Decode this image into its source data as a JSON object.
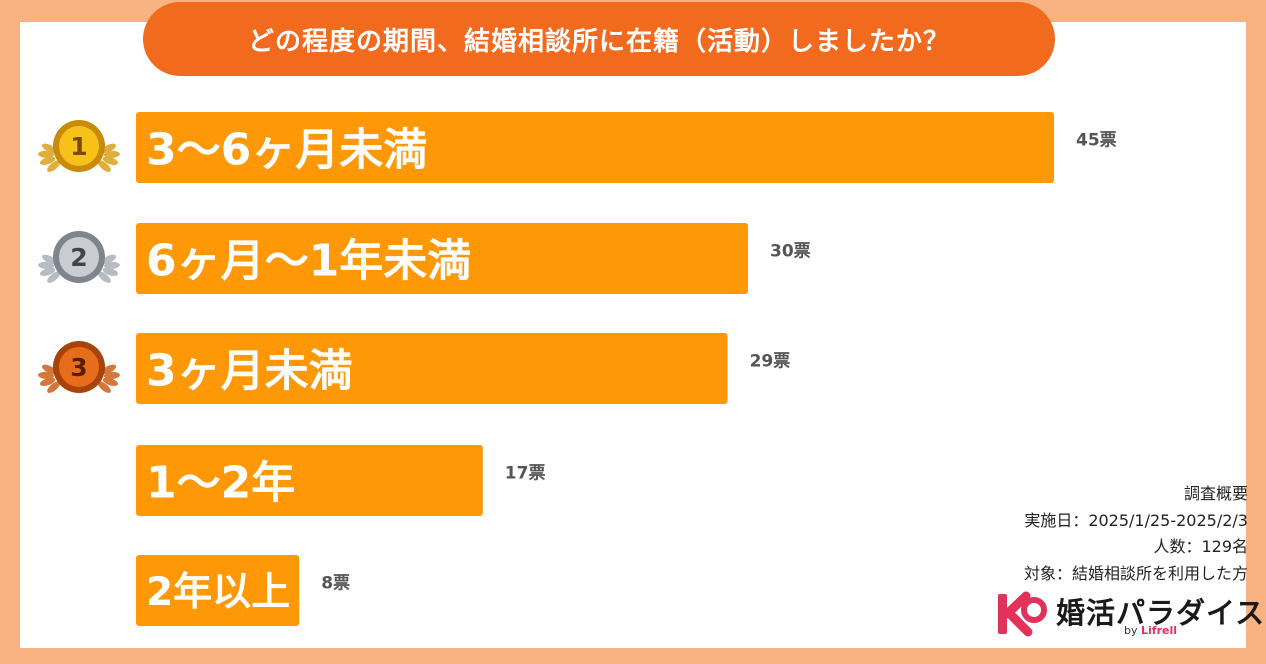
{
  "title": "どの程度の期間、結婚相談所に在籍（活動）しましたか？",
  "chart_data": {
    "type": "bar",
    "orientation": "horizontal",
    "categories": [
      "3〜6ヶ月未満",
      "6ヶ月〜1年未満",
      "3ヶ月未満",
      "1〜2年",
      "2年以上"
    ],
    "values": [
      45,
      30,
      29,
      17,
      8
    ],
    "value_labels": [
      "45票",
      "30票",
      "29票",
      "17票",
      "8票"
    ],
    "ranks": [
      "1",
      "2",
      "3"
    ],
    "bar_color": "#ff9807"
  },
  "summary": {
    "heading": "調査概要",
    "period": "実施日：2025/1/25-2025/2/3",
    "count": "人数：129名",
    "target": "対象：結婚相談所を利用した方"
  },
  "logo": {
    "name": "婚活パラダイス",
    "by": "by",
    "brand": "Lifrell",
    "brand_color": "#e1325a"
  }
}
